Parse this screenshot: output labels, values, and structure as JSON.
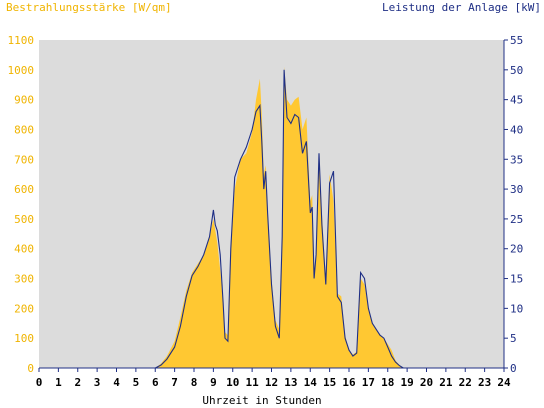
{
  "colors": {
    "plot_bg": "#dcdcdc",
    "irradiance_fill": "#ffc832",
    "power_line": "#1f2f85",
    "left_axis_text": "#f0b400",
    "right_axis_text": "#1f2f85"
  },
  "chart_data": {
    "type": "area",
    "title_left": "Bestrahlungsstärke [W/qm]",
    "title_right": "Leistung der Anlage [kW]",
    "xlabel": "Uhrzeit in Stunden",
    "xlim": [
      0,
      24
    ],
    "ylim": [
      0,
      1100
    ],
    "y2lim": [
      0,
      55
    ],
    "x_ticks": [
      "0",
      "1",
      "2",
      "3",
      "4",
      "5",
      "6",
      "7",
      "8",
      "9",
      "10",
      "11",
      "12",
      "13",
      "14",
      "15",
      "16",
      "17",
      "18",
      "19",
      "20",
      "21",
      "22",
      "23",
      "24"
    ],
    "y_ticks": [
      "0",
      "100",
      "200",
      "300",
      "400",
      "500",
      "600",
      "700",
      "800",
      "900",
      "1000",
      "1100"
    ],
    "y2_ticks": [
      "0",
      "5",
      "10",
      "15",
      "20",
      "25",
      "30",
      "35",
      "40",
      "45",
      "50",
      "55"
    ],
    "grid": false,
    "series": [
      {
        "name": "Bestrahlungsstärke [W/qm]",
        "axis": "left",
        "kind": "area",
        "x": [
          0,
          6,
          6.3,
          6.6,
          7.0,
          7.3,
          7.6,
          7.9,
          8.2,
          8.5,
          8.8,
          9.0,
          9.2,
          9.4,
          9.6,
          9.75,
          9.9,
          10.1,
          10.4,
          10.7,
          11.0,
          11.2,
          11.4,
          11.5,
          11.6,
          11.7,
          11.8,
          12.0,
          12.2,
          12.4,
          12.55,
          12.65,
          12.8,
          13.0,
          13.2,
          13.4,
          13.6,
          13.8,
          14.0,
          14.1,
          14.2,
          14.3,
          14.45,
          14.6,
          14.8,
          15.0,
          15.2,
          15.4,
          15.6,
          15.8,
          16.0,
          16.2,
          16.4,
          16.6,
          16.8,
          17.0,
          17.2,
          17.4,
          17.6,
          17.8,
          18.0,
          18.2,
          18.4,
          18.6,
          18.8,
          19.0,
          19.2,
          24
        ],
        "y": [
          0,
          0,
          15,
          40,
          90,
          170,
          260,
          320,
          350,
          380,
          440,
          500,
          420,
          300,
          120,
          110,
          420,
          600,
          700,
          720,
          790,
          900,
          970,
          850,
          650,
          680,
          540,
          300,
          160,
          130,
          450,
          1010,
          900,
          880,
          900,
          910,
          800,
          840,
          560,
          580,
          330,
          380,
          700,
          520,
          300,
          650,
          560,
          250,
          240,
          110,
          60,
          45,
          55,
          300,
          280,
          200,
          150,
          130,
          110,
          100,
          80,
          60,
          25,
          10,
          0,
          0,
          0,
          0
        ]
      },
      {
        "name": "Leistung der Anlage [kW]",
        "axis": "right",
        "kind": "line",
        "x": [
          0,
          6,
          6.3,
          6.6,
          7.0,
          7.3,
          7.6,
          7.9,
          8.2,
          8.5,
          8.8,
          9.0,
          9.1,
          9.2,
          9.35,
          9.5,
          9.6,
          9.75,
          9.9,
          10.1,
          10.4,
          10.7,
          11.0,
          11.2,
          11.4,
          11.5,
          11.6,
          11.7,
          11.8,
          12.0,
          12.2,
          12.4,
          12.55,
          12.65,
          12.8,
          13.0,
          13.2,
          13.4,
          13.6,
          13.8,
          14.0,
          14.1,
          14.2,
          14.3,
          14.45,
          14.6,
          14.8,
          15.0,
          15.2,
          15.4,
          15.6,
          15.8,
          16.0,
          16.2,
          16.4,
          16.6,
          16.8,
          17.0,
          17.2,
          17.4,
          17.6,
          17.8,
          18.0,
          18.2,
          18.4,
          18.6,
          18.8,
          19.0,
          19.2,
          24
        ],
        "y": [
          0,
          0,
          0.5,
          1.5,
          3.5,
          7,
          12,
          15.5,
          17,
          19,
          22,
          26.5,
          24,
          23,
          19,
          11,
          5,
          4.5,
          20,
          32,
          35,
          37,
          40,
          43,
          44,
          38,
          30,
          33,
          26,
          14,
          7,
          5,
          22,
          50,
          42,
          41,
          42.5,
          42,
          36,
          38,
          26,
          27,
          15,
          19,
          36,
          24,
          14,
          31,
          33,
          12,
          11,
          5,
          3,
          2,
          2.5,
          16,
          15,
          10,
          7.5,
          6.5,
          5.5,
          5,
          3.5,
          2,
          1,
          0.4,
          0,
          0,
          0,
          0
        ]
      }
    ]
  }
}
